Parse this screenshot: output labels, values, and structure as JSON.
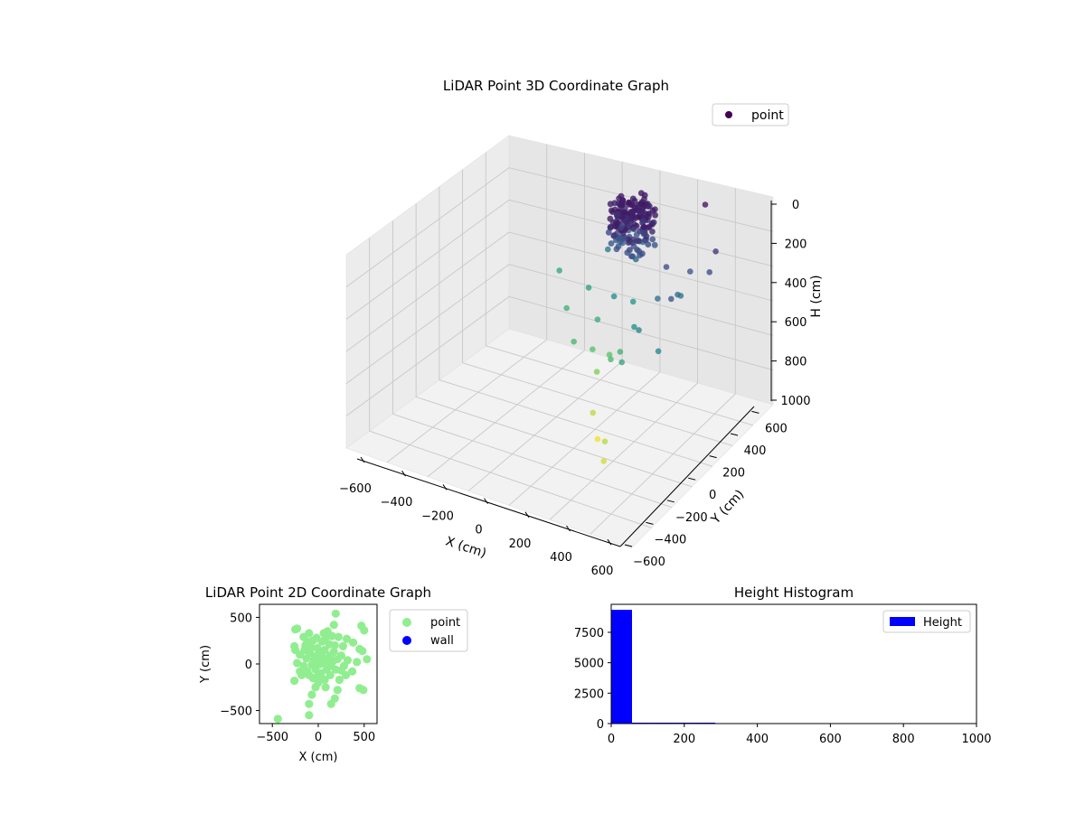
{
  "chart_data": [
    {
      "type": "scatter",
      "title": "LiDAR Point 3D Coordinate Graph",
      "xlabel": "X (cm)",
      "ylabel": "Y (cm)",
      "zlabel": "H (cm)",
      "xlim": [
        -650,
        650
      ],
      "ylim": [
        -650,
        650
      ],
      "zlim": [
        1000,
        0
      ],
      "xticks": [
        "−600",
        "−400",
        "−200",
        "0",
        "200",
        "400",
        "600"
      ],
      "yticks": [
        "−600",
        "−400",
        "−200",
        "0",
        "200",
        "400",
        "600"
      ],
      "zticks": [
        "0",
        "200",
        "400",
        "600",
        "800",
        "1000"
      ],
      "legend": {
        "position": "top-right",
        "entries": [
          {
            "label": "point",
            "color": "#440154"
          }
        ]
      },
      "colormap": "viridis",
      "series": [
        {
          "name": "point",
          "points": [
            [
              -560,
              80,
              500
            ],
            [
              -380,
              -60,
              540
            ],
            [
              -300,
              50,
              470
            ],
            [
              -260,
              180,
              340
            ],
            [
              -200,
              -200,
              560
            ],
            [
              -150,
              -40,
              520
            ],
            [
              -120,
              -120,
              610
            ],
            [
              -60,
              -150,
              680
            ],
            [
              40,
              -300,
              760
            ],
            [
              120,
              -350,
              830
            ],
            [
              240,
              -420,
              760
            ],
            [
              300,
              -500,
              790
            ],
            [
              -20,
              -80,
              620
            ],
            [
              60,
              -160,
              570
            ],
            [
              100,
              -120,
              540
            ],
            [
              200,
              -220,
              500
            ],
            [
              160,
              -60,
              430
            ],
            [
              -80,
              30,
              420
            ],
            [
              20,
              90,
              440
            ],
            [
              350,
              120,
              300
            ],
            [
              380,
              200,
              220
            ],
            [
              420,
              -20,
              220
            ],
            [
              500,
              240,
              200
            ],
            [
              480,
              320,
              150
            ],
            [
              300,
              430,
              50
            ],
            [
              250,
              -120,
              380
            ],
            [
              440,
              -160,
              390
            ],
            [
              340,
              160,
              330
            ],
            [
              260,
              120,
              200
            ],
            [
              260,
              40,
              310
            ],
            [
              -40,
              260,
              220
            ]
          ]
        }
      ]
    },
    {
      "type": "scatter",
      "title": "LiDAR Point 2D Coordinate Graph",
      "xlabel": "X (cm)",
      "ylabel": "Y (cm)",
      "xlim": [
        -640,
        640
      ],
      "ylim": [
        -640,
        640
      ],
      "xticks": [
        "−500",
        "0",
        "500"
      ],
      "yticks": [
        "500",
        "0",
        "−500"
      ],
      "legend": {
        "position": "outside-right",
        "entries": [
          {
            "label": "point",
            "color": "#90ee90"
          },
          {
            "label": "wall",
            "color": "#0000ff"
          }
        ]
      },
      "series": [
        {
          "name": "point",
          "color": "#90ee90",
          "points": [
            [
              -440,
              -590
            ],
            [
              -100,
              -550
            ],
            [
              140,
              -430
            ],
            [
              -100,
              -430
            ],
            [
              -70,
              -330
            ],
            [
              180,
              -370
            ],
            [
              210,
              -280
            ],
            [
              450,
              -260
            ],
            [
              490,
              -280
            ],
            [
              -260,
              -180
            ],
            [
              -230,
              10
            ],
            [
              -260,
              190
            ],
            [
              -250,
              150
            ],
            [
              -230,
              380
            ],
            [
              -250,
              370
            ],
            [
              190,
              540
            ],
            [
              170,
              420
            ],
            [
              470,
              410
            ],
            [
              500,
              360
            ],
            [
              380,
              230
            ],
            [
              310,
              270
            ],
            [
              450,
              160
            ],
            [
              480,
              140
            ],
            [
              530,
              50
            ],
            [
              420,
              20
            ],
            [
              370,
              -80
            ],
            [
              300,
              -120
            ],
            [
              230,
              -170
            ],
            [
              -200,
              100
            ],
            [
              -140,
              200
            ],
            [
              -160,
              290
            ],
            [
              -100,
              330
            ],
            [
              -60,
              250
            ],
            [
              -10,
              170
            ],
            [
              40,
              240
            ],
            [
              80,
              280
            ],
            [
              120,
              210
            ],
            [
              170,
              130
            ],
            [
              210,
              50
            ],
            [
              190,
              -60
            ],
            [
              130,
              -120
            ],
            [
              70,
              -170
            ],
            [
              0,
              -200
            ],
            [
              -60,
              -150
            ],
            [
              -120,
              -80
            ],
            [
              -160,
              -20
            ],
            [
              -130,
              60
            ],
            [
              -90,
              120
            ],
            [
              -40,
              80
            ],
            [
              0,
              30
            ],
            [
              50,
              70
            ],
            [
              100,
              40
            ],
            [
              140,
              -10
            ],
            [
              90,
              -60
            ],
            [
              30,
              -100
            ],
            [
              -30,
              -60
            ],
            [
              -70,
              -10
            ],
            [
              -20,
              -20
            ],
            [
              20,
              0
            ],
            [
              60,
              10
            ],
            [
              -50,
              40
            ],
            [
              10,
              120
            ],
            [
              70,
              150
            ],
            [
              130,
              90
            ],
            [
              160,
              30
            ],
            [
              110,
              -30
            ],
            [
              -100,
              -120
            ],
            [
              -150,
              150
            ],
            [
              250,
              90
            ],
            [
              280,
              -20
            ],
            [
              -200,
              -80
            ],
            [
              0,
              -130
            ],
            [
              220,
              290
            ],
            [
              -20,
              280
            ],
            [
              60,
              330
            ],
            [
              -120,
              240
            ],
            [
              180,
              200
            ],
            [
              270,
              190
            ],
            [
              320,
              40
            ],
            [
              -180,
              -120
            ],
            [
              250,
              -70
            ],
            [
              80,
              -250
            ],
            [
              -30,
              -250
            ],
            [
              150,
              300
            ],
            [
              -80,
              180
            ],
            [
              100,
              350
            ]
          ]
        },
        {
          "name": "wall",
          "color": "#0000ff",
          "points": []
        }
      ]
    },
    {
      "type": "bar",
      "title": "Height Histogram",
      "xlim": [
        0,
        1000
      ],
      "ylim": [
        0,
        9800
      ],
      "xticks": [
        "0",
        "200",
        "400",
        "600",
        "800",
        "1000"
      ],
      "yticks": [
        "0",
        "2500",
        "5000",
        "7500"
      ],
      "legend": {
        "position": "top-right",
        "entries": [
          {
            "label": "Height",
            "color": "#0000ff"
          }
        ]
      },
      "bins": [
        {
          "x0": 0,
          "x1": 57,
          "value": 9350
        },
        {
          "x0": 57,
          "x1": 114,
          "value": 60
        },
        {
          "x0": 114,
          "x1": 171,
          "value": 40
        },
        {
          "x0": 171,
          "x1": 228,
          "value": 30
        },
        {
          "x0": 228,
          "x1": 285,
          "value": 10
        }
      ]
    }
  ]
}
